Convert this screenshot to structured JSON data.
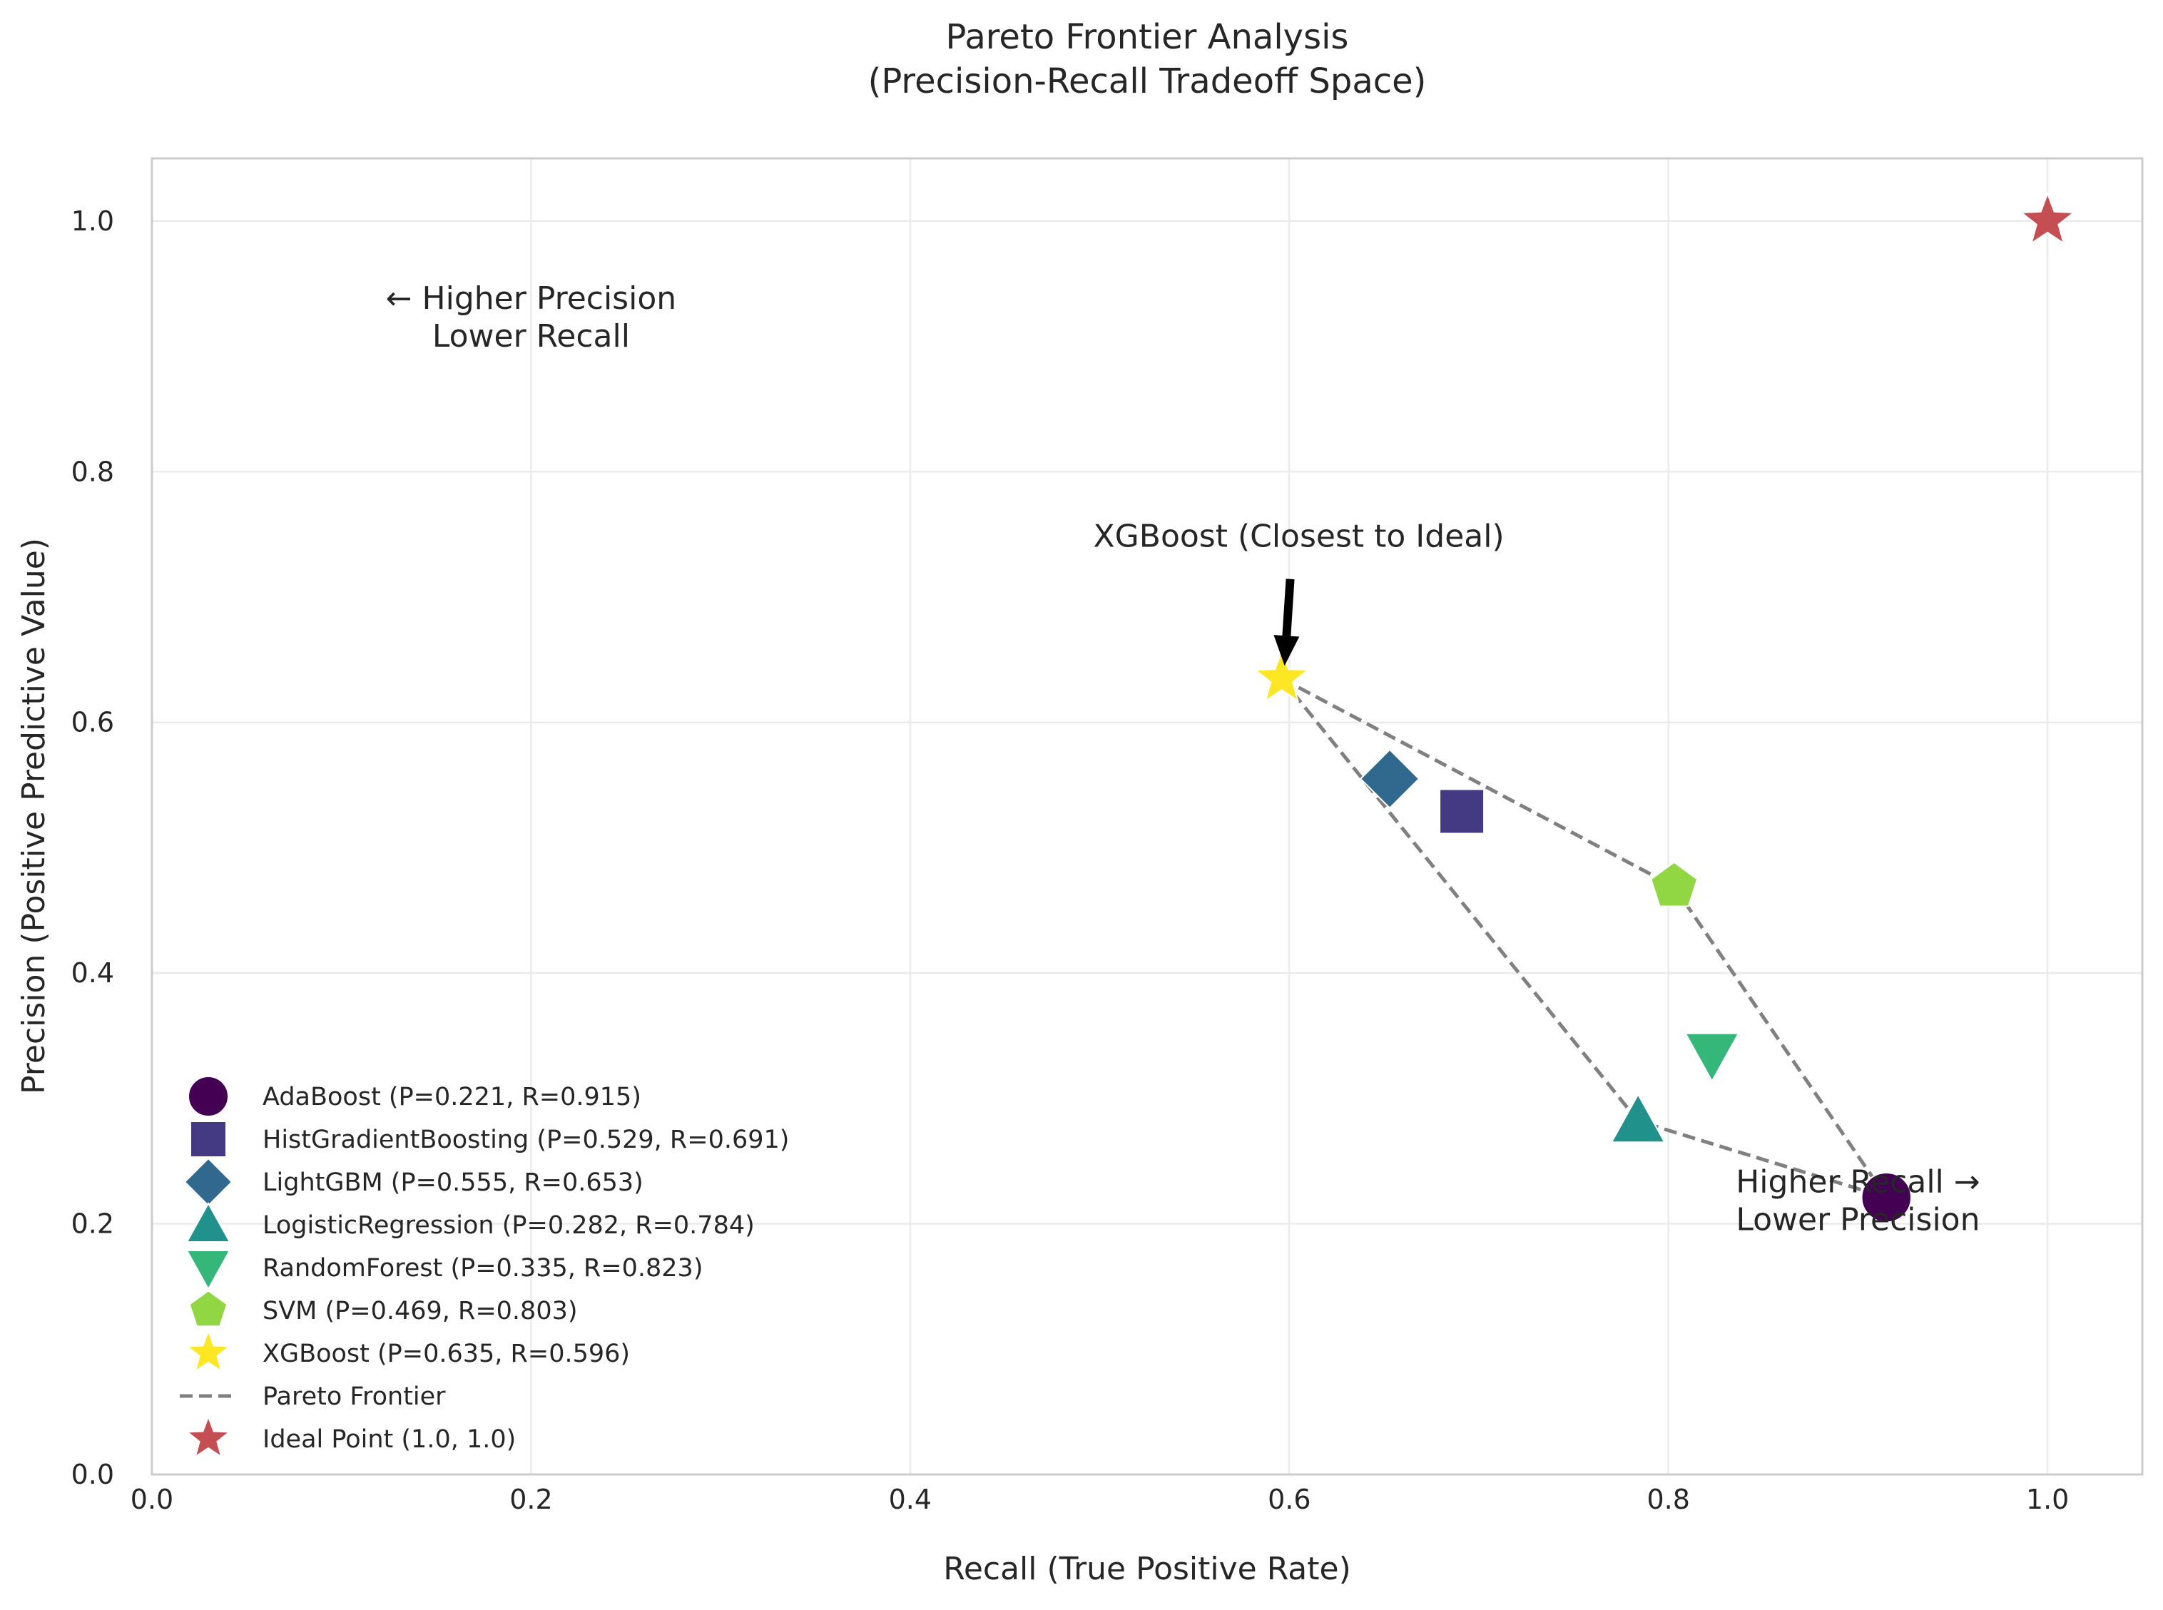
{
  "chart_data": {
    "type": "scatter",
    "title": "Pareto Frontier Analysis",
    "subtitle": "(Precision-Recall Tradeoff Space)",
    "xlabel": "Recall (True Positive Rate)",
    "ylabel": "Precision (Positive Predictive Value)",
    "xlim": [
      0,
      1.05
    ],
    "ylim": [
      0,
      1.05
    ],
    "xticks": [
      0.0,
      0.2,
      0.4,
      0.6,
      0.8,
      1.0
    ],
    "yticks": [
      0.0,
      0.2,
      0.4,
      0.6,
      0.8,
      1.0
    ],
    "xtick_labels": [
      "0.0",
      "0.2",
      "0.4",
      "0.6",
      "0.8",
      "1.0"
    ],
    "ytick_labels": [
      "0.0",
      "0.2",
      "0.4",
      "0.6",
      "0.8",
      "1.0"
    ],
    "grid": true,
    "legend_position": "lower-left",
    "series": [
      {
        "name": "AdaBoost",
        "label": "AdaBoost (P=0.221, R=0.915)",
        "x": 0.915,
        "y": 0.221,
        "marker": "circle",
        "color": "#440154"
      },
      {
        "name": "HistGradientBoosting",
        "label": "HistGradientBoosting (P=0.529, R=0.691)",
        "x": 0.691,
        "y": 0.529,
        "marker": "square",
        "color": "#443983"
      },
      {
        "name": "LightGBM",
        "label": "LightGBM (P=0.555, R=0.653)",
        "x": 0.653,
        "y": 0.555,
        "marker": "diamond",
        "color": "#31688e"
      },
      {
        "name": "LogisticRegression",
        "label": "LogisticRegression (P=0.282, R=0.784)",
        "x": 0.784,
        "y": 0.282,
        "marker": "triangle-up",
        "color": "#21918c"
      },
      {
        "name": "RandomForest",
        "label": "RandomForest (P=0.335, R=0.823)",
        "x": 0.823,
        "y": 0.335,
        "marker": "triangle-down",
        "color": "#35b779"
      },
      {
        "name": "SVM",
        "label": "SVM (P=0.469, R=0.803)",
        "x": 0.803,
        "y": 0.469,
        "marker": "pentagon",
        "color": "#90d743"
      },
      {
        "name": "XGBoost",
        "label": "XGBoost (P=0.635, R=0.596)",
        "x": 0.596,
        "y": 0.635,
        "marker": "star",
        "color": "#fde725"
      }
    ],
    "pareto_frontier": {
      "label": "Pareto Frontier",
      "color": "#808080",
      "points": [
        [
          0.596,
          0.635
        ],
        [
          0.803,
          0.469
        ],
        [
          0.915,
          0.221
        ],
        [
          0.784,
          0.282
        ],
        [
          0.596,
          0.635
        ]
      ]
    },
    "ideal_point": {
      "label": "Ideal Point (1.0, 1.0)",
      "x": 1.0,
      "y": 1.0,
      "marker": "star",
      "color": "#c44e52"
    },
    "annotations": [
      {
        "text": "XGBoost (Closest to Ideal)",
        "x": 0.605,
        "y": 0.74,
        "arrow_to": [
          0.596,
          0.635
        ]
      },
      {
        "text_lines": [
          "← Higher Precision",
          "Lower Recall"
        ],
        "x": 0.2,
        "y": 0.93
      },
      {
        "text_lines": [
          "Higher Recall →",
          "Lower Precision"
        ],
        "x": 0.9,
        "y": 0.225
      }
    ]
  }
}
